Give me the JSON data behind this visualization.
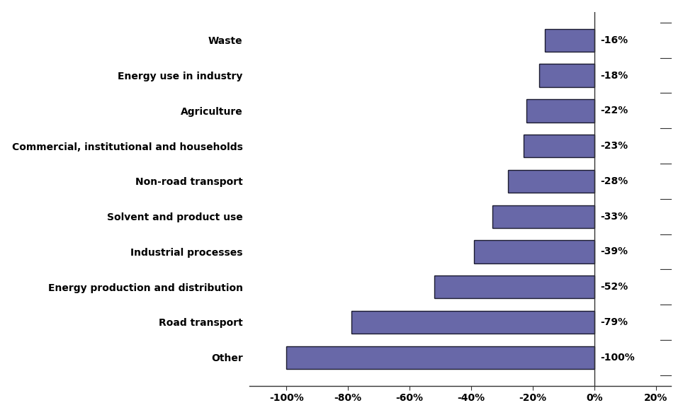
{
  "categories": [
    "Other",
    "Road transport",
    "Energy production and distribution",
    "Industrial processes",
    "Solvent and product use",
    "Non-road transport",
    "Commercial, institutional and households",
    "Agriculture",
    "Energy use in industry",
    "Waste"
  ],
  "values": [
    -100,
    -79,
    -52,
    -39,
    -33,
    -28,
    -23,
    -22,
    -18,
    -16
  ],
  "bar_color": "#6868a8",
  "bar_edgecolor": "#1a1a2e",
  "label_color": "#000000",
  "background_color": "#ffffff",
  "xlim": [
    -112,
    25
  ],
  "xticks": [
    -100,
    -80,
    -60,
    -40,
    -20,
    0,
    20
  ],
  "xtick_labels": [
    "-100%",
    "-80%",
    "-60%",
    "-40%",
    "-20%",
    "0%",
    "20%"
  ],
  "bar_height": 0.65,
  "label_fontsize": 10,
  "tick_fontsize": 10,
  "category_fontsize": 10
}
